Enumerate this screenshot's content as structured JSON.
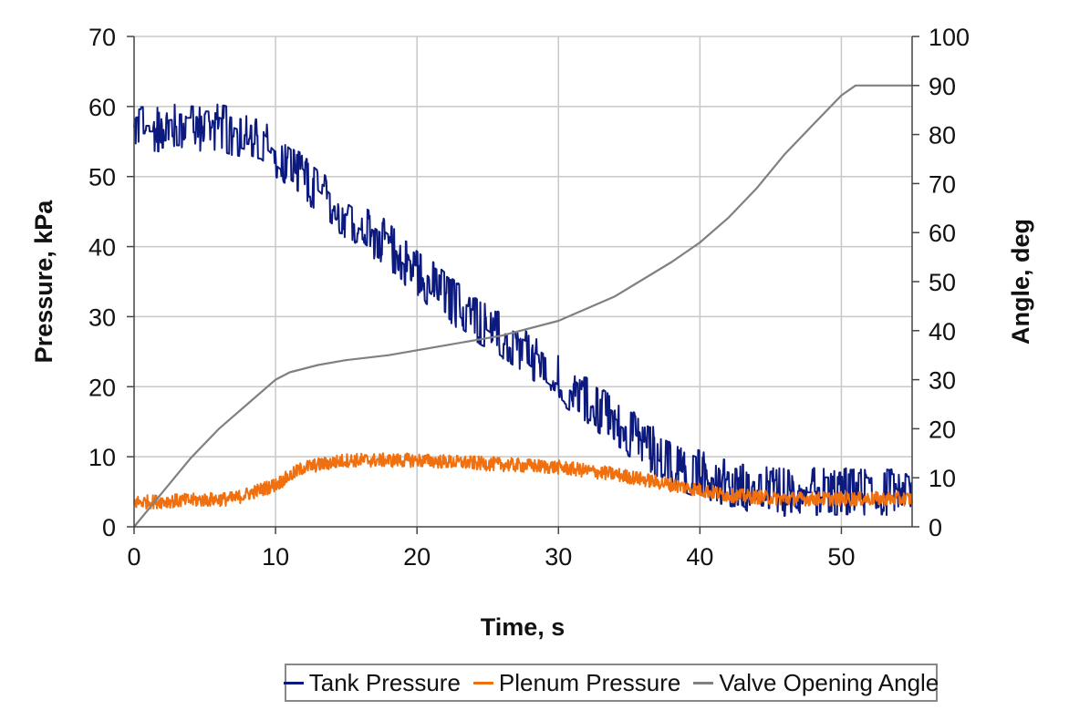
{
  "chart_data": {
    "type": "line",
    "title": "",
    "xlabel": "Time, s",
    "ylabel": "Pressure, kPa",
    "y2label": "Angle, deg",
    "xlim": [
      0,
      55
    ],
    "ylim": [
      0,
      70
    ],
    "y2lim": [
      0,
      100
    ],
    "xticks": [
      0,
      10,
      20,
      30,
      40,
      50
    ],
    "yticks": [
      0,
      10,
      20,
      30,
      40,
      50,
      60,
      70
    ],
    "y2ticks": [
      0,
      10,
      20,
      30,
      40,
      50,
      60,
      70,
      80,
      90,
      100
    ],
    "grid": true,
    "legend_position": "bottom",
    "series": [
      {
        "name": "Tank Pressure",
        "axis": "left",
        "color": "#0c1a80",
        "noise_kpa": 3.5,
        "x": [
          0,
          6,
          9,
          10,
          14,
          18,
          22,
          26,
          30,
          34,
          38,
          42,
          46,
          55
        ],
        "y": [
          57,
          57,
          55,
          53,
          46,
          40,
          33,
          27,
          21,
          15,
          9,
          6,
          5,
          5
        ]
      },
      {
        "name": "Plenum Pressure",
        "axis": "left",
        "color": "#f07010",
        "noise_kpa": 1.0,
        "x": [
          0,
          7,
          10,
          12,
          15,
          20,
          25,
          30,
          34,
          38,
          42,
          46,
          55
        ],
        "y": [
          3.5,
          4,
          6,
          8.5,
          9.5,
          9.5,
          9,
          8.5,
          7.5,
          6,
          4.5,
          4,
          4
        ]
      },
      {
        "name": "Valve Opening Angle",
        "axis": "right",
        "color": "#808080",
        "noise_kpa": 0,
        "x": [
          0,
          2,
          4,
          6,
          8,
          10,
          11,
          13,
          15,
          18,
          22,
          26,
          30,
          34,
          38,
          40,
          42,
          44,
          46,
          48,
          50,
          51,
          55
        ],
        "y": [
          0,
          7,
          14,
          20,
          25,
          30,
          31.5,
          33,
          34,
          35,
          37,
          39,
          42,
          47,
          54,
          58,
          63,
          69,
          76,
          82,
          88,
          90,
          90
        ]
      }
    ]
  }
}
